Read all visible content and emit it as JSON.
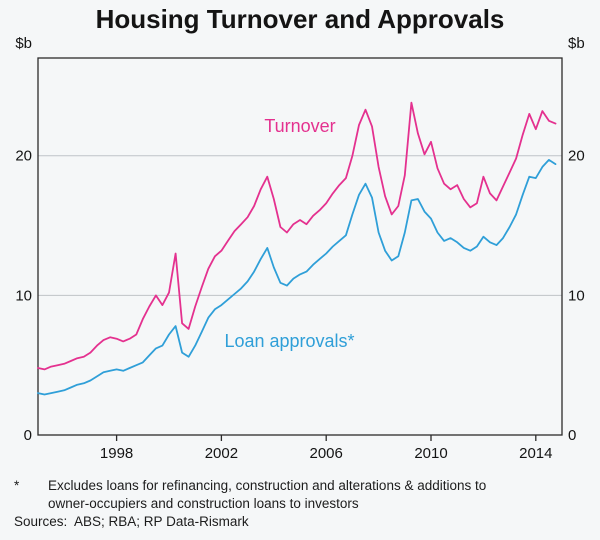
{
  "chart_data": {
    "type": "line",
    "title": "Housing Turnover and Approvals",
    "ylabel": "$b",
    "ylabel_right": "$b",
    "xlabel": "",
    "xlim": [
      1995,
      2015
    ],
    "ylim": [
      0,
      27
    ],
    "yticks": [
      0,
      10,
      20
    ],
    "xticks": [
      1998,
      2002,
      2006,
      2010,
      2014
    ],
    "grid": "horizontal",
    "legend": "inline-annotations",
    "x_start": 1995.0,
    "x_step": 0.25,
    "x_note": "quarterly points, year fractions",
    "series": [
      {
        "id": "turnover",
        "name": "Turnover",
        "color": "#e4318f",
        "values": [
          4.8,
          4.7,
          4.9,
          5.0,
          5.1,
          5.3,
          5.5,
          5.6,
          5.9,
          6.4,
          6.8,
          7.0,
          6.9,
          6.7,
          6.9,
          7.2,
          8.3,
          9.2,
          10.0,
          9.3,
          10.2,
          13.0,
          8.0,
          7.6,
          9.2,
          10.6,
          11.9,
          12.8,
          13.2,
          13.9,
          14.6,
          15.1,
          15.6,
          16.4,
          17.6,
          18.5,
          16.9,
          14.9,
          14.5,
          15.1,
          15.4,
          15.1,
          15.7,
          16.1,
          16.6,
          17.3,
          17.9,
          18.4,
          20.0,
          22.2,
          23.3,
          22.1,
          19.2,
          17.1,
          15.8,
          16.4,
          18.6,
          23.8,
          21.6,
          20.1,
          21.0,
          19.1,
          18.0,
          17.6,
          17.9,
          16.9,
          16.3,
          16.6,
          18.5,
          17.3,
          16.8,
          17.8,
          18.8,
          19.8,
          21.5,
          23.0,
          21.9,
          23.2,
          22.5,
          22.3
        ]
      },
      {
        "id": "loan-approvals",
        "name": "Loan approvals*",
        "color": "#2f9fd8",
        "values": [
          3.0,
          2.9,
          3.0,
          3.1,
          3.2,
          3.4,
          3.6,
          3.7,
          3.9,
          4.2,
          4.5,
          4.6,
          4.7,
          4.6,
          4.8,
          5.0,
          5.2,
          5.7,
          6.2,
          6.4,
          7.2,
          7.8,
          5.9,
          5.6,
          6.4,
          7.4,
          8.4,
          9.0,
          9.3,
          9.7,
          10.1,
          10.5,
          11.0,
          11.7,
          12.6,
          13.4,
          12.0,
          10.9,
          10.7,
          11.2,
          11.5,
          11.7,
          12.2,
          12.6,
          13.0,
          13.5,
          13.9,
          14.3,
          15.8,
          17.2,
          18.0,
          17.0,
          14.5,
          13.2,
          12.5,
          12.8,
          14.5,
          16.8,
          16.9,
          16.0,
          15.5,
          14.5,
          13.9,
          14.1,
          13.8,
          13.4,
          13.2,
          13.5,
          14.2,
          13.8,
          13.6,
          14.1,
          14.9,
          15.8,
          17.2,
          18.5,
          18.4,
          19.2,
          19.7,
          19.4
        ]
      }
    ],
    "annotations": [
      {
        "id": "turnover",
        "text": "Turnover",
        "x": 2005.0,
        "y": 21.7,
        "color": "#e4318f"
      },
      {
        "id": "loan-approvals",
        "text": "Loan approvals*",
        "x": 2004.6,
        "y": 6.3,
        "color": "#2f9fd8"
      }
    ]
  },
  "footnote": {
    "marker": "*",
    "text": "Excludes loans for refinancing, construction and alterations & additions to owner-occupiers and construction loans to investors"
  },
  "sources": "Sources:  ABS; RBA; RP Data-Rismark"
}
